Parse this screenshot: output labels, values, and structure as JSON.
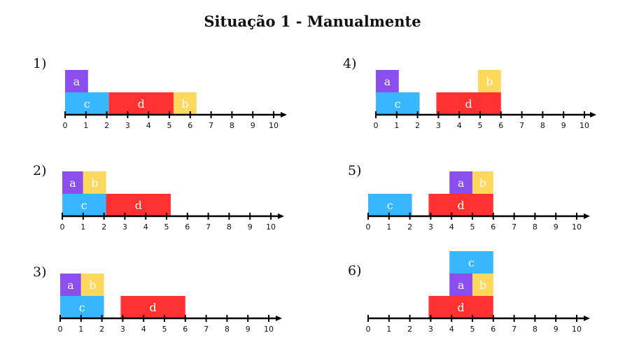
{
  "title": "Situação 1 - Manualmente",
  "colors": {
    "a": "#8a4dee",
    "b": "#fdd85c",
    "c": "#38b6fe",
    "d": "#ff3131",
    "axis": "#000000"
  },
  "axis": {
    "ticks": [
      "0",
      "1",
      "2",
      "3",
      "4",
      "5",
      "6",
      "7",
      "8",
      "9",
      "10"
    ],
    "max": 10
  },
  "panels": [
    {
      "id": "1",
      "label": "1)",
      "blocks": [
        {
          "label": "a",
          "start": 0,
          "end": 1.1,
          "row": 1,
          "color": "a"
        },
        {
          "label": "c",
          "start": 0,
          "end": 2.1,
          "row": 0,
          "color": "c"
        },
        {
          "label": "d",
          "start": 2.1,
          "end": 5.2,
          "row": 0,
          "color": "d"
        },
        {
          "label": "b",
          "start": 5.2,
          "end": 6.3,
          "row": 0,
          "color": "b"
        }
      ]
    },
    {
      "id": "2",
      "label": "2)",
      "blocks": [
        {
          "label": "a",
          "start": 0,
          "end": 1,
          "row": 1,
          "color": "a"
        },
        {
          "label": "b",
          "start": 1,
          "end": 2.1,
          "row": 1,
          "color": "b"
        },
        {
          "label": "c",
          "start": 0,
          "end": 2.1,
          "row": 0,
          "color": "c"
        },
        {
          "label": "d",
          "start": 2.1,
          "end": 5.2,
          "row": 0,
          "color": "d"
        }
      ]
    },
    {
      "id": "3",
      "label": "3)",
      "blocks": [
        {
          "label": "a",
          "start": 0,
          "end": 1,
          "row": 1,
          "color": "a"
        },
        {
          "label": "b",
          "start": 1,
          "end": 2.1,
          "row": 1,
          "color": "b"
        },
        {
          "label": "c",
          "start": 0,
          "end": 2.1,
          "row": 0,
          "color": "c"
        },
        {
          "label": "d",
          "start": 2.9,
          "end": 6,
          "row": 0,
          "color": "d"
        }
      ]
    },
    {
      "id": "4",
      "label": "4)",
      "blocks": [
        {
          "label": "a",
          "start": 0,
          "end": 1.1,
          "row": 1,
          "color": "a"
        },
        {
          "label": "c",
          "start": 0,
          "end": 2.1,
          "row": 0,
          "color": "c"
        },
        {
          "label": "d",
          "start": 2.9,
          "end": 6,
          "row": 0,
          "color": "d"
        },
        {
          "label": "b",
          "start": 4.9,
          "end": 6,
          "row": 1,
          "color": "b"
        }
      ]
    },
    {
      "id": "5",
      "label": "5)",
      "blocks": [
        {
          "label": "c",
          "start": 0,
          "end": 2.1,
          "row": 0,
          "color": "c"
        },
        {
          "label": "d",
          "start": 2.9,
          "end": 6,
          "row": 0,
          "color": "d"
        },
        {
          "label": "a",
          "start": 3.9,
          "end": 5,
          "row": 1,
          "color": "a"
        },
        {
          "label": "b",
          "start": 5,
          "end": 6,
          "row": 1,
          "color": "b"
        }
      ]
    },
    {
      "id": "6",
      "label": "6)",
      "blocks": [
        {
          "label": "d",
          "start": 2.9,
          "end": 6,
          "row": 0,
          "color": "d"
        },
        {
          "label": "a",
          "start": 3.9,
          "end": 5,
          "row": 1,
          "color": "a"
        },
        {
          "label": "b",
          "start": 5,
          "end": 6,
          "row": 1,
          "color": "b"
        },
        {
          "label": "c",
          "start": 3.9,
          "end": 6,
          "row": 2,
          "color": "c"
        }
      ]
    }
  ]
}
